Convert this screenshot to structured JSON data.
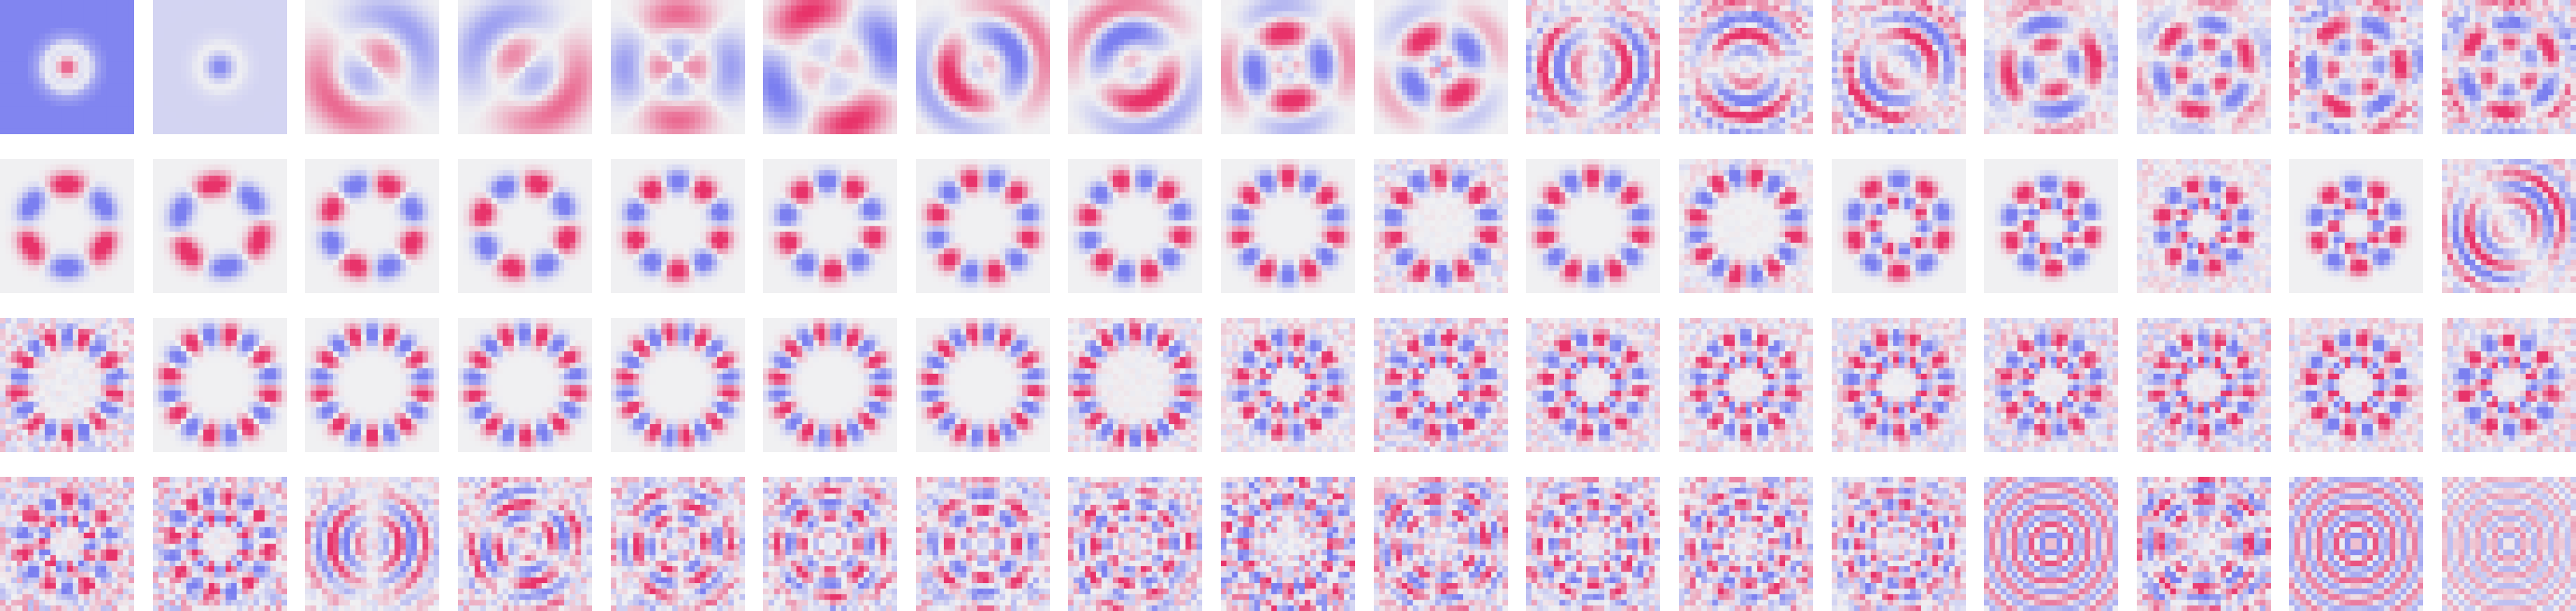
{
  "colors": {
    "positive": "#e8336a",
    "negative": "#7b7ff0",
    "neutral": "#f0f0f2"
  },
  "grid": {
    "rows": 4,
    "cols": 17,
    "tiles": [
      {
        "pattern": "ring",
        "n": 0,
        "k": 0,
        "r": 0.0,
        "bg": -0.95,
        "center": 0.9
      },
      {
        "pattern": "ring",
        "n": 0,
        "k": 0,
        "r": 0.0,
        "bg": -0.25,
        "center": -0.95
      },
      {
        "pattern": "angular",
        "n": 1,
        "k": 1,
        "r": 0.55,
        "ph": 0.78
      },
      {
        "pattern": "angular",
        "n": 1,
        "k": 1,
        "r": 0.55,
        "ph": 2.35
      },
      {
        "pattern": "angular",
        "n": 2,
        "k": 1,
        "r": 0.55,
        "ph": 0.0
      },
      {
        "pattern": "angular",
        "n": 2,
        "k": 1,
        "r": 0.75,
        "ph": 0.78
      },
      {
        "pattern": "angular",
        "n": 1,
        "k": 2,
        "r": 0.6,
        "ph": 0.5
      },
      {
        "pattern": "angular",
        "n": 1,
        "k": 2,
        "r": 0.6,
        "ph": 2.0
      },
      {
        "pattern": "angular",
        "n": 2,
        "k": 2,
        "r": 0.55,
        "ph": 0.3
      },
      {
        "pattern": "angular",
        "n": 2,
        "k": 2,
        "r": 0.45,
        "ph": 1.2
      },
      {
        "pattern": "angular",
        "n": 1,
        "k": 4,
        "r": 0.6,
        "ph": 0.0,
        "noise": 0.25
      },
      {
        "pattern": "angular",
        "n": 1,
        "k": 4,
        "r": 0.6,
        "ph": 1.57,
        "noise": 0.3
      },
      {
        "pattern": "angular",
        "n": 1,
        "k": 4,
        "r": 0.6,
        "ph": 0.8,
        "noise": 0.3
      },
      {
        "pattern": "angular",
        "n": 2,
        "k": 3,
        "r": 0.55,
        "ph": 0.4,
        "noise": 0.15
      },
      {
        "pattern": "angular",
        "n": 3,
        "k": 3,
        "r": 0.55,
        "ph": 0.9,
        "noise": 0.15
      },
      {
        "pattern": "angular",
        "n": 3,
        "k": 3,
        "r": 0.6,
        "ph": 0.2,
        "noise": 0.3
      },
      {
        "pattern": "angular",
        "n": 3,
        "k": 3,
        "r": 0.6,
        "ph": 1.4,
        "noise": 0.3
      },
      {
        "pattern": "petals",
        "n": 3,
        "r": 0.62,
        "ph": 0.0
      },
      {
        "pattern": "petals",
        "n": 3,
        "r": 0.62,
        "ph": 0.5
      },
      {
        "pattern": "petals",
        "n": 4,
        "r": 0.65,
        "ph": 0.0
      },
      {
        "pattern": "petals",
        "n": 4,
        "r": 0.65,
        "ph": 0.4
      },
      {
        "pattern": "petals",
        "n": 5,
        "r": 0.66,
        "ph": 0.0
      },
      {
        "pattern": "petals",
        "n": 5,
        "r": 0.66,
        "ph": 0.3
      },
      {
        "pattern": "petals",
        "n": 6,
        "r": 0.7,
        "ph": 0.0
      },
      {
        "pattern": "petals",
        "n": 6,
        "r": 0.7,
        "ph": 0.26
      },
      {
        "pattern": "petals",
        "n": 7,
        "r": 0.72,
        "ph": 0.0
      },
      {
        "pattern": "petals",
        "n": 7,
        "r": 0.72,
        "ph": 0.2,
        "noise": 0.2
      },
      {
        "pattern": "petals",
        "n": 7,
        "r": 0.72,
        "ph": 0.1
      },
      {
        "pattern": "petals",
        "n": 8,
        "r": 0.74,
        "ph": 0.0,
        "noise": 0.15
      },
      {
        "pattern": "petals2",
        "n": 5,
        "r": 0.68,
        "ph": 0.0
      },
      {
        "pattern": "petals2",
        "n": 5,
        "r": 0.62,
        "ph": 0.3
      },
      {
        "pattern": "petals2",
        "n": 6,
        "r": 0.62,
        "ph": 0.0,
        "noise": 0.2
      },
      {
        "pattern": "petals2",
        "n": 5,
        "r": 0.6,
        "ph": 0.4
      },
      {
        "pattern": "angular",
        "n": 1,
        "k": 5,
        "r": 0.65,
        "ph": 0.6,
        "noise": 0.2
      },
      {
        "pattern": "petals",
        "n": 9,
        "r": 0.72,
        "ph": 0.0,
        "noise": 0.3
      },
      {
        "pattern": "petals",
        "n": 8,
        "r": 0.75,
        "ph": 0.0
      },
      {
        "pattern": "petals",
        "n": 9,
        "r": 0.76,
        "ph": 0.0
      },
      {
        "pattern": "petals",
        "n": 9,
        "r": 0.76,
        "ph": 0.2
      },
      {
        "pattern": "petals",
        "n": 10,
        "r": 0.77,
        "ph": 0.0
      },
      {
        "pattern": "petals",
        "n": 10,
        "r": 0.77,
        "ph": 0.15
      },
      {
        "pattern": "petals",
        "n": 10,
        "r": 0.77,
        "ph": 0.3
      },
      {
        "pattern": "petals",
        "n": 11,
        "r": 0.78,
        "ph": 0.0,
        "noise": 0.2
      },
      {
        "pattern": "petals2",
        "n": 8,
        "r": 0.7,
        "ph": 0.0,
        "noise": 0.2
      },
      {
        "pattern": "petals2",
        "n": 8,
        "r": 0.7,
        "ph": 0.2,
        "noise": 0.35
      },
      {
        "pattern": "petals2",
        "n": 8,
        "r": 0.7,
        "ph": 0.4,
        "noise": 0.25
      },
      {
        "pattern": "petals2",
        "n": 9,
        "r": 0.7,
        "ph": 0.1,
        "noise": 0.25
      },
      {
        "pattern": "petals2",
        "n": 9,
        "r": 0.7,
        "ph": 0.3,
        "noise": 0.25
      },
      {
        "pattern": "petals2",
        "n": 8,
        "r": 0.68,
        "ph": 0.0,
        "noise": 0.3
      },
      {
        "pattern": "petals2",
        "n": 9,
        "r": 0.68,
        "ph": 0.2,
        "noise": 0.35
      },
      {
        "pattern": "petals2",
        "n": 8,
        "r": 0.68,
        "ph": 0.4,
        "noise": 0.25
      },
      {
        "pattern": "petals2",
        "n": 7,
        "r": 0.66,
        "ph": 0.1,
        "noise": 0.3
      },
      {
        "pattern": "petals2",
        "n": 7,
        "r": 0.66,
        "ph": 0.0,
        "noise": 0.4
      },
      {
        "pattern": "petals2",
        "n": 8,
        "r": 0.72,
        "ph": 0.3,
        "noise": 0.4
      },
      {
        "pattern": "angular",
        "n": 1,
        "k": 5,
        "r": 0.55,
        "ph": 0.0,
        "noise": 0.2
      },
      {
        "pattern": "angular",
        "n": 2,
        "k": 5,
        "r": 0.55,
        "ph": 0.6,
        "noise": 0.3
      },
      {
        "pattern": "angular",
        "n": 3,
        "k": 5,
        "r": 0.55,
        "ph": 0.3,
        "noise": 0.3
      },
      {
        "pattern": "angular",
        "n": 4,
        "k": 5,
        "r": 0.6,
        "ph": 0.0,
        "noise": 0.3
      },
      {
        "pattern": "angular",
        "n": 4,
        "k": 4,
        "r": 0.55,
        "ph": 0.0,
        "noise": 0.3
      },
      {
        "pattern": "angular",
        "n": 5,
        "k": 5,
        "r": 0.6,
        "ph": 0.2,
        "noise": 0.35
      },
      {
        "pattern": "angular",
        "n": 12,
        "k": 3,
        "r": 0.7,
        "ph": 0.0,
        "noise": 0.45
      },
      {
        "pattern": "angular",
        "n": 4,
        "k": 6,
        "r": 0.65,
        "ph": 0.78,
        "noise": 0.3
      },
      {
        "pattern": "angular",
        "n": 6,
        "k": 5,
        "r": 0.6,
        "ph": 0.0,
        "noise": 0.35
      },
      {
        "pattern": "angular",
        "n": 6,
        "k": 5,
        "r": 0.6,
        "ph": 0.4,
        "noise": 0.35
      },
      {
        "pattern": "angular",
        "n": 7,
        "k": 5,
        "r": 0.6,
        "ph": 0.2,
        "noise": 0.35
      },
      {
        "pattern": "ring",
        "n": 0,
        "k": 7,
        "r": 0.0,
        "bg": -0.5,
        "center": 0.95
      },
      {
        "pattern": "angular",
        "n": 4,
        "k": 6,
        "r": 0.7,
        "ph": 0.0,
        "noise": 0.4
      },
      {
        "pattern": "ring",
        "n": 0,
        "k": 7,
        "r": 0.0,
        "bg": -0.5,
        "center": 0.95
      },
      {
        "pattern": "ring",
        "n": 0,
        "k": 8,
        "r": 0.0,
        "bg": 0.3,
        "center": 0.6
      }
    ]
  }
}
